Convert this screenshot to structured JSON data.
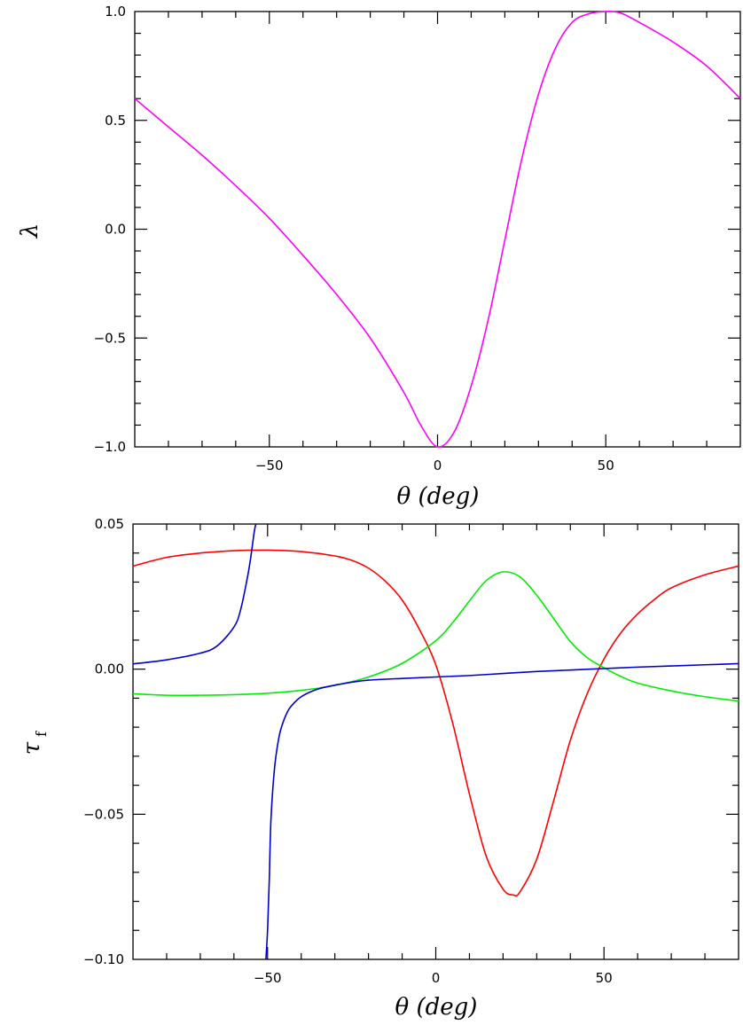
{
  "chart_data": [
    {
      "type": "line",
      "title": "",
      "xlabel": "θ (deg)",
      "ylabel": "λ",
      "xlim": [
        -90,
        90
      ],
      "ylim": [
        -1.0,
        1.0
      ],
      "xticks": [
        -50,
        0,
        50
      ],
      "xtick_labels": [
        "−50",
        "0",
        "50"
      ],
      "yticks": [
        -1.0,
        -0.5,
        0.0,
        0.5,
        1.0
      ],
      "ytick_labels": [
        "−1.0",
        "−0.5",
        "0.0",
        "0.5",
        "1.0"
      ],
      "grid": false,
      "series": [
        {
          "color": "#ff00ff",
          "x": [
            -90,
            -80,
            -70,
            -60,
            -50,
            -40,
            -30,
            -20,
            -10,
            -5,
            0,
            5,
            10,
            15,
            20,
            25,
            30,
            35,
            40,
            45,
            50,
            52,
            55,
            60,
            70,
            80,
            90
          ],
          "y": [
            0.6,
            0.47,
            0.34,
            0.2,
            0.05,
            -0.12,
            -0.3,
            -0.5,
            -0.75,
            -0.9,
            -1.0,
            -0.93,
            -0.72,
            -0.42,
            -0.05,
            0.32,
            0.62,
            0.83,
            0.95,
            0.99,
            1.0,
            1.0,
            0.99,
            0.95,
            0.86,
            0.75,
            0.6
          ]
        }
      ]
    },
    {
      "type": "line",
      "title": "",
      "xlabel": "θ (deg)",
      "ylabel": "τ",
      "ylabel_subscript": "f",
      "xlim": [
        -90,
        90
      ],
      "ylim": [
        -0.1,
        0.05
      ],
      "xticks": [
        -50,
        0,
        50
      ],
      "xtick_labels": [
        "−50",
        "0",
        "50"
      ],
      "yticks": [
        -0.1,
        -0.05,
        0.0,
        0.05
      ],
      "ytick_labels": [
        "−0.10",
        "−0.05",
        "0.00",
        "0.05"
      ],
      "grid": false,
      "series": [
        {
          "color": "#ff0000",
          "x": [
            -90,
            -80,
            -70,
            -60,
            -50,
            -40,
            -30,
            -25,
            -20,
            -15,
            -10,
            -5,
            0,
            5,
            10,
            15,
            20,
            23,
            25,
            30,
            35,
            40,
            45,
            50,
            55,
            60,
            65,
            70,
            80,
            90
          ],
          "y": [
            0.0355,
            0.0385,
            0.04,
            0.0408,
            0.041,
            0.0405,
            0.039,
            0.0375,
            0.0348,
            0.0303,
            0.0238,
            0.014,
            0.0015,
            -0.0185,
            -0.043,
            -0.0645,
            -0.0758,
            -0.0778,
            -0.0768,
            -0.0655,
            -0.0455,
            -0.0245,
            -0.0085,
            0.0035,
            0.0125,
            0.019,
            0.024,
            0.028,
            0.0325,
            0.0355
          ]
        },
        {
          "color": "#00ee00",
          "x": [
            -90,
            -80,
            -70,
            -60,
            -50,
            -40,
            -30,
            -20,
            -10,
            0,
            5,
            10,
            15,
            20,
            25,
            30,
            35,
            40,
            45,
            50,
            55,
            60,
            70,
            80,
            90
          ],
          "y": [
            -0.0085,
            -0.009,
            -0.009,
            -0.0088,
            -0.0083,
            -0.0073,
            -0.0056,
            -0.0027,
            0.002,
            0.0098,
            0.016,
            0.0235,
            0.0305,
            0.0335,
            0.0318,
            0.0255,
            0.0175,
            0.0095,
            0.004,
            0.0005,
            -0.0025,
            -0.0048,
            -0.0075,
            -0.0095,
            -0.011
          ]
        },
        {
          "color": "#0000cc",
          "x": [
            -90,
            -80,
            -70,
            -65,
            -60,
            -58,
            -56,
            -55,
            -54,
            -53.5
          ],
          "y": [
            0.0018,
            0.0032,
            0.0055,
            0.008,
            0.0145,
            0.0205,
            0.0315,
            0.0385,
            0.047,
            0.05
          ]
        },
        {
          "color": "#0000cc",
          "x": [
            -50.5,
            -50,
            -49.5,
            -49,
            -48,
            -47,
            -46,
            -44,
            -42,
            -40,
            -37,
            -34,
            -30,
            -25,
            -20,
            -10,
            0,
            10,
            20,
            30,
            40,
            50,
            60,
            70,
            80,
            90
          ],
          "y": [
            -0.1,
            -0.09,
            -0.073,
            -0.052,
            -0.035,
            -0.026,
            -0.0205,
            -0.0145,
            -0.0115,
            -0.0095,
            -0.0077,
            -0.0065,
            -0.0055,
            -0.0045,
            -0.0038,
            -0.0032,
            -0.0027,
            -0.0022,
            -0.0015,
            -0.0008,
            -0.0003,
            0.0002,
            0.0007,
            0.0011,
            0.0015,
            0.0019
          ]
        }
      ]
    }
  ]
}
